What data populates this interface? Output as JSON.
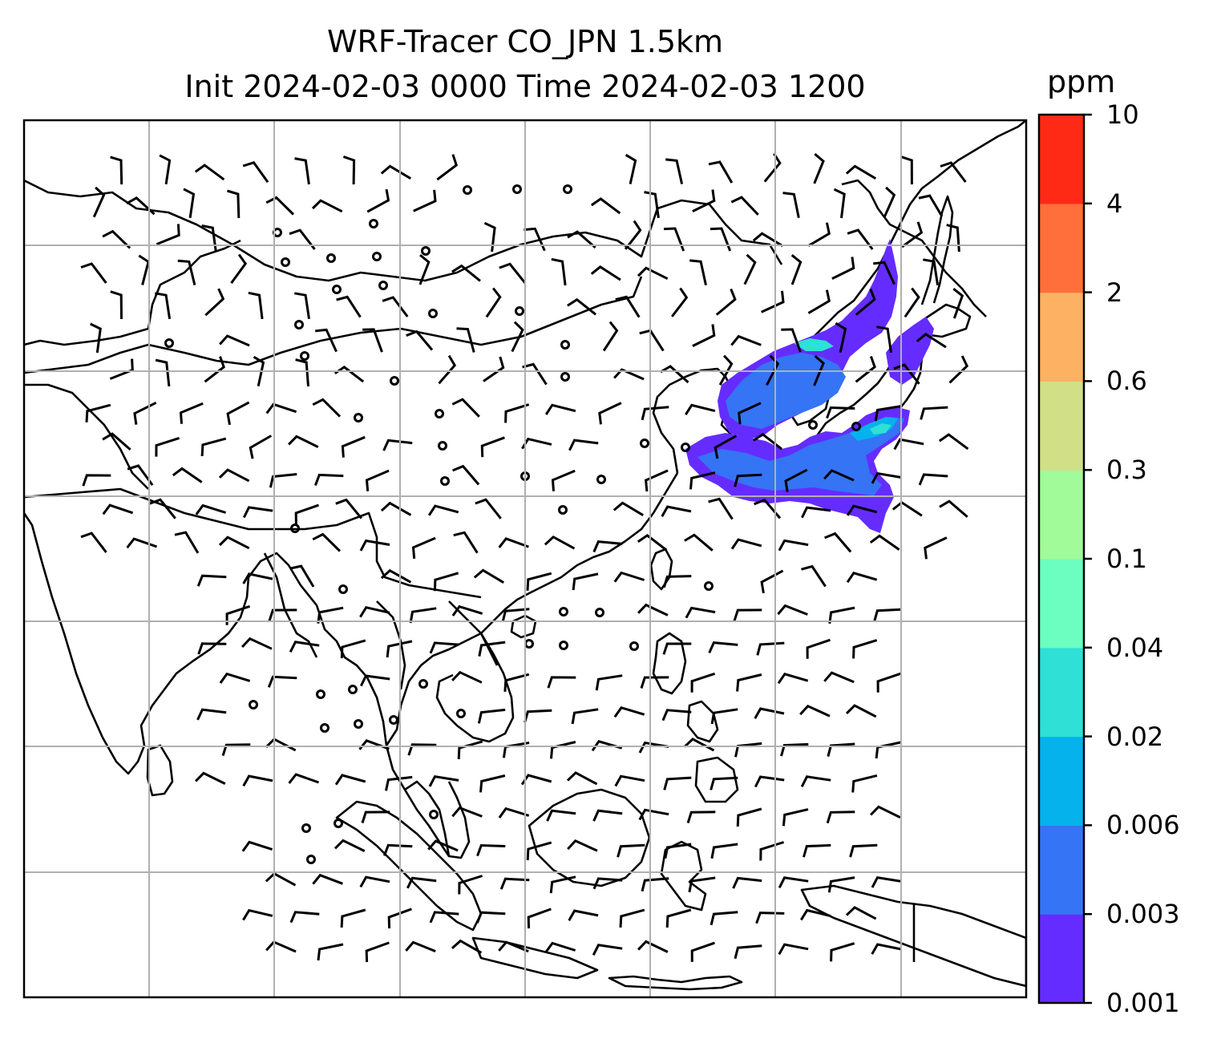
{
  "title": {
    "line1": "WRF-Tracer CO_JPN 1.5km",
    "line2": "Init 2024-02-03 0000 Time 2024-02-03 1200"
  },
  "colorbar": {
    "unit": "ppm",
    "levels": [
      "0.001",
      "0.003",
      "0.006",
      "0.02",
      "0.04",
      "0.1",
      "0.3",
      "0.6",
      "2",
      "4",
      "10"
    ],
    "colors": [
      "#652cff",
      "#3574f4",
      "#05b2ec",
      "#2ee0d6",
      "#6bfec0",
      "#a1fb98",
      "#d1e087",
      "#fdb162",
      "#ff6f3b",
      "#ff2a16"
    ]
  },
  "map": {
    "grid": "on",
    "features": [
      "coastlines",
      "wind-barbs",
      "calm-circles",
      "tracer-plume"
    ],
    "plume_color_dominant": "#3574f4"
  }
}
